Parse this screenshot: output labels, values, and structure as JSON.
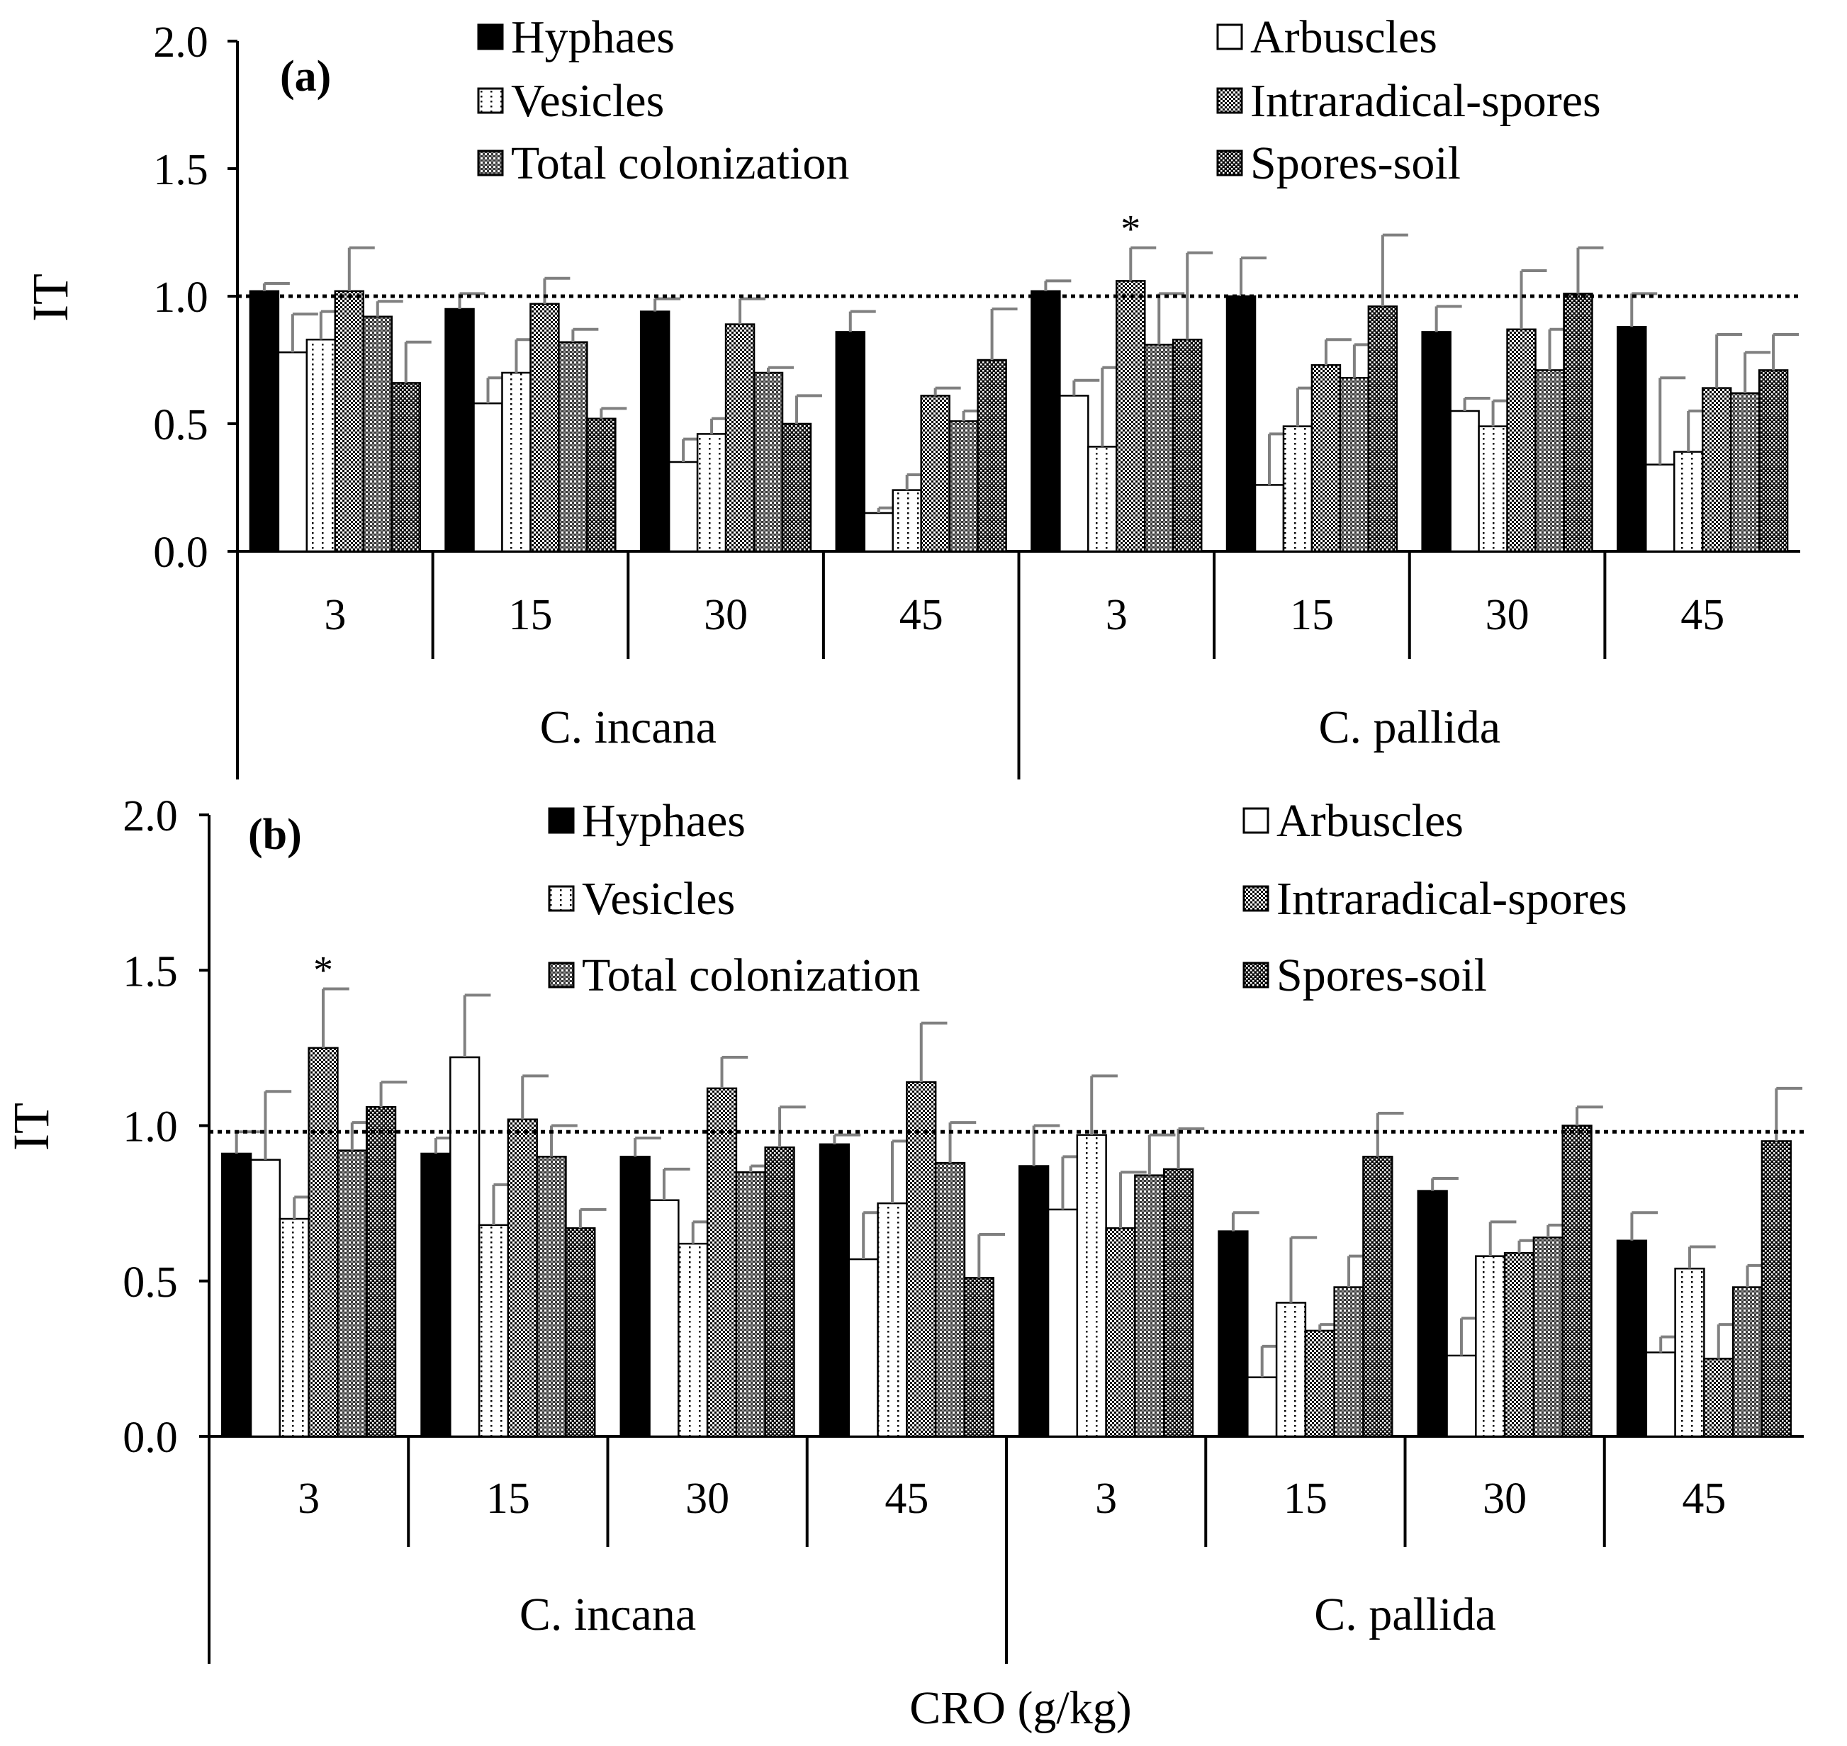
{
  "chart_data": [
    {
      "type": "bar",
      "panel_label": "(a)",
      "ylabel": "IT",
      "ylim": [
        0,
        2.0
      ],
      "yticks": [
        "0.0",
        "0.5",
        "1.0",
        "1.5",
        "2.0"
      ],
      "reference_line": 1.0,
      "categories": [
        "3",
        "15",
        "30",
        "45",
        "3",
        "15",
        "30",
        "45"
      ],
      "groups": [
        "C. incana",
        "C. pallida"
      ],
      "legend_position": "top",
      "grid": false,
      "series": [
        {
          "name": "Hyphaes",
          "values": [
            1.02,
            0.95,
            0.94,
            0.86,
            1.02,
            1.0,
            0.86,
            0.88
          ],
          "errors": [
            0.03,
            0.06,
            0.05,
            0.08,
            0.04,
            0.15,
            0.1,
            0.13
          ]
        },
        {
          "name": "Arbuscles",
          "values": [
            0.78,
            0.58,
            0.35,
            0.15,
            0.61,
            0.26,
            0.55,
            0.34
          ],
          "errors": [
            0.15,
            0.1,
            0.09,
            0.02,
            0.06,
            0.2,
            0.05,
            0.34
          ]
        },
        {
          "name": "Vesicles",
          "values": [
            0.83,
            0.7,
            0.46,
            0.24,
            0.41,
            0.49,
            0.49,
            0.39
          ],
          "errors": [
            0.11,
            0.13,
            0.06,
            0.06,
            0.31,
            0.15,
            0.1,
            0.16
          ]
        },
        {
          "name": "Intraradical-spores",
          "values": [
            1.02,
            0.97,
            0.89,
            0.61,
            1.06,
            0.73,
            0.87,
            0.64
          ],
          "errors": [
            0.17,
            0.1,
            0.1,
            0.03,
            0.13,
            0.1,
            0.23,
            0.21
          ]
        },
        {
          "name": "Total colonization",
          "values": [
            0.92,
            0.82,
            0.7,
            0.51,
            0.81,
            0.68,
            0.71,
            0.62
          ],
          "errors": [
            0.06,
            0.05,
            0.02,
            0.04,
            0.2,
            0.13,
            0.16,
            0.16
          ]
        },
        {
          "name": "Spores-soil",
          "values": [
            0.66,
            0.52,
            0.5,
            0.75,
            0.83,
            0.96,
            1.01,
            0.71
          ],
          "errors": [
            0.16,
            0.04,
            0.11,
            0.2,
            0.34,
            0.28,
            0.18,
            0.14
          ]
        }
      ],
      "annotations": [
        {
          "text": "*",
          "category_index": 4,
          "series": "Intraradical-spores"
        }
      ]
    },
    {
      "type": "bar",
      "panel_label": "(b)",
      "ylabel": "IT",
      "xlabel": "CRO (g/kg)",
      "ylim": [
        0,
        2.0
      ],
      "yticks": [
        "0.0",
        "0.5",
        "1.0",
        "1.5",
        "2.0"
      ],
      "reference_line": 0.98,
      "categories": [
        "3",
        "15",
        "30",
        "45",
        "3",
        "15",
        "30",
        "45"
      ],
      "groups": [
        "C. incana",
        "C. pallida"
      ],
      "legend_position": "top",
      "grid": false,
      "series": [
        {
          "name": "Hyphaes",
          "values": [
            0.91,
            0.91,
            0.9,
            0.94,
            0.87,
            0.66,
            0.79,
            0.63
          ],
          "errors": [
            0.07,
            0.05,
            0.06,
            0.03,
            0.13,
            0.06,
            0.04,
            0.09
          ]
        },
        {
          "name": "Arbuscles",
          "values": [
            0.89,
            1.22,
            0.76,
            0.57,
            0.73,
            0.19,
            0.26,
            0.27
          ],
          "errors": [
            0.22,
            0.2,
            0.1,
            0.15,
            0.17,
            0.1,
            0.12,
            0.05
          ]
        },
        {
          "name": "Vesicles",
          "values": [
            0.7,
            0.68,
            0.62,
            0.75,
            0.97,
            0.43,
            0.58,
            0.54
          ],
          "errors": [
            0.07,
            0.13,
            0.07,
            0.2,
            0.19,
            0.21,
            0.11,
            0.07
          ]
        },
        {
          "name": "Intraradical-spores",
          "values": [
            1.25,
            1.02,
            1.12,
            1.14,
            0.67,
            0.34,
            0.59,
            0.25
          ],
          "errors": [
            0.19,
            0.14,
            0.1,
            0.19,
            0.18,
            0.02,
            0.04,
            0.11
          ]
        },
        {
          "name": "Total colonization",
          "values": [
            0.92,
            0.9,
            0.85,
            0.88,
            0.84,
            0.48,
            0.64,
            0.48
          ],
          "errors": [
            0.09,
            0.1,
            0.02,
            0.13,
            0.13,
            0.1,
            0.04,
            0.07
          ]
        },
        {
          "name": "Spores-soil",
          "values": [
            1.06,
            0.67,
            0.93,
            0.51,
            0.86,
            0.9,
            1.0,
            0.95
          ],
          "errors": [
            0.08,
            0.06,
            0.13,
            0.14,
            0.13,
            0.14,
            0.06,
            0.17
          ]
        }
      ],
      "annotations": [
        {
          "text": "*",
          "category_index": 0,
          "series": "Intraradical-spores"
        }
      ]
    }
  ]
}
